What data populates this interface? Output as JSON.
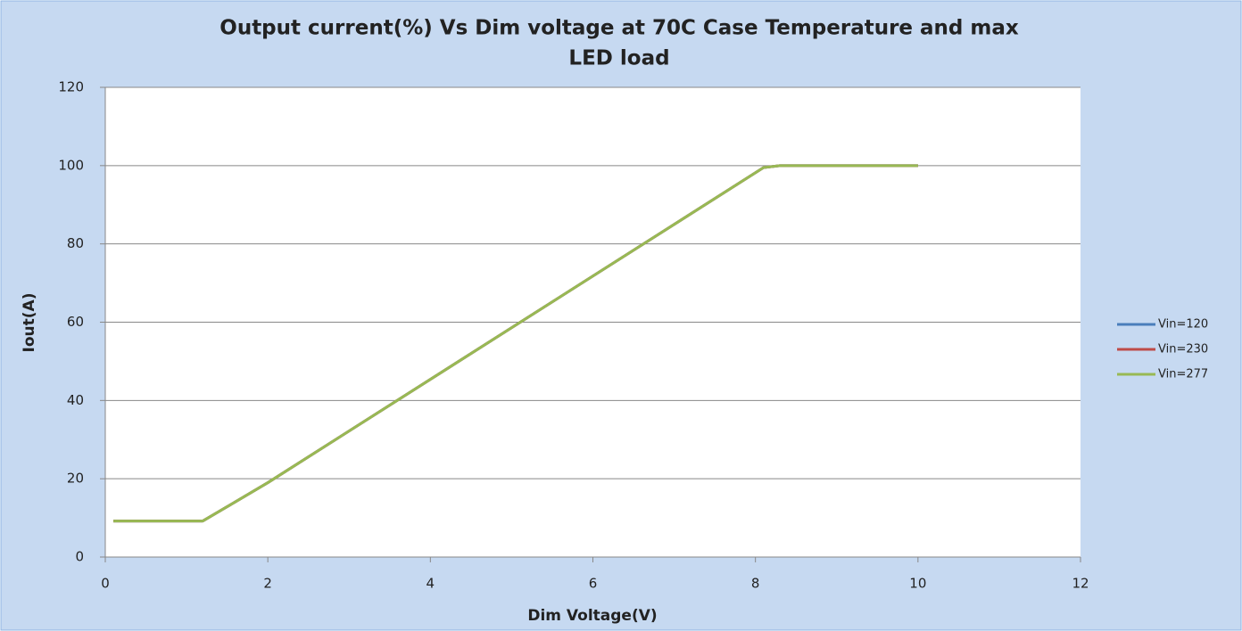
{
  "chart_data": {
    "type": "line",
    "title": [
      "Output current(%) Vs Dim voltage at 70C Case Temperature and max",
      "LED load"
    ],
    "xlabel": "Dim Voltage(V)",
    "ylabel": "Iout(A)",
    "x": [
      0.1,
      1.2,
      2,
      8.1,
      8.3,
      10
    ],
    "series": [
      {
        "name": "Vin=120",
        "color": "#4a7ebb",
        "values": [
          9.2,
          9.2,
          19,
          99.5,
          100,
          100
        ]
      },
      {
        "name": "Vin=230",
        "color": "#be4b48",
        "values": [
          9.2,
          9.2,
          19,
          99.5,
          100,
          100
        ]
      },
      {
        "name": "Vin=277",
        "color": "#98b954",
        "values": [
          9.2,
          9.2,
          19,
          99.5,
          100,
          100
        ]
      }
    ],
    "xlim": [
      0,
      12
    ],
    "xticks": [
      0,
      2,
      4,
      6,
      8,
      10,
      12
    ],
    "ylim": [
      0,
      120
    ],
    "yticks": [
      0,
      20,
      40,
      60,
      80,
      100,
      120
    ],
    "grid": true,
    "legend": "right"
  }
}
